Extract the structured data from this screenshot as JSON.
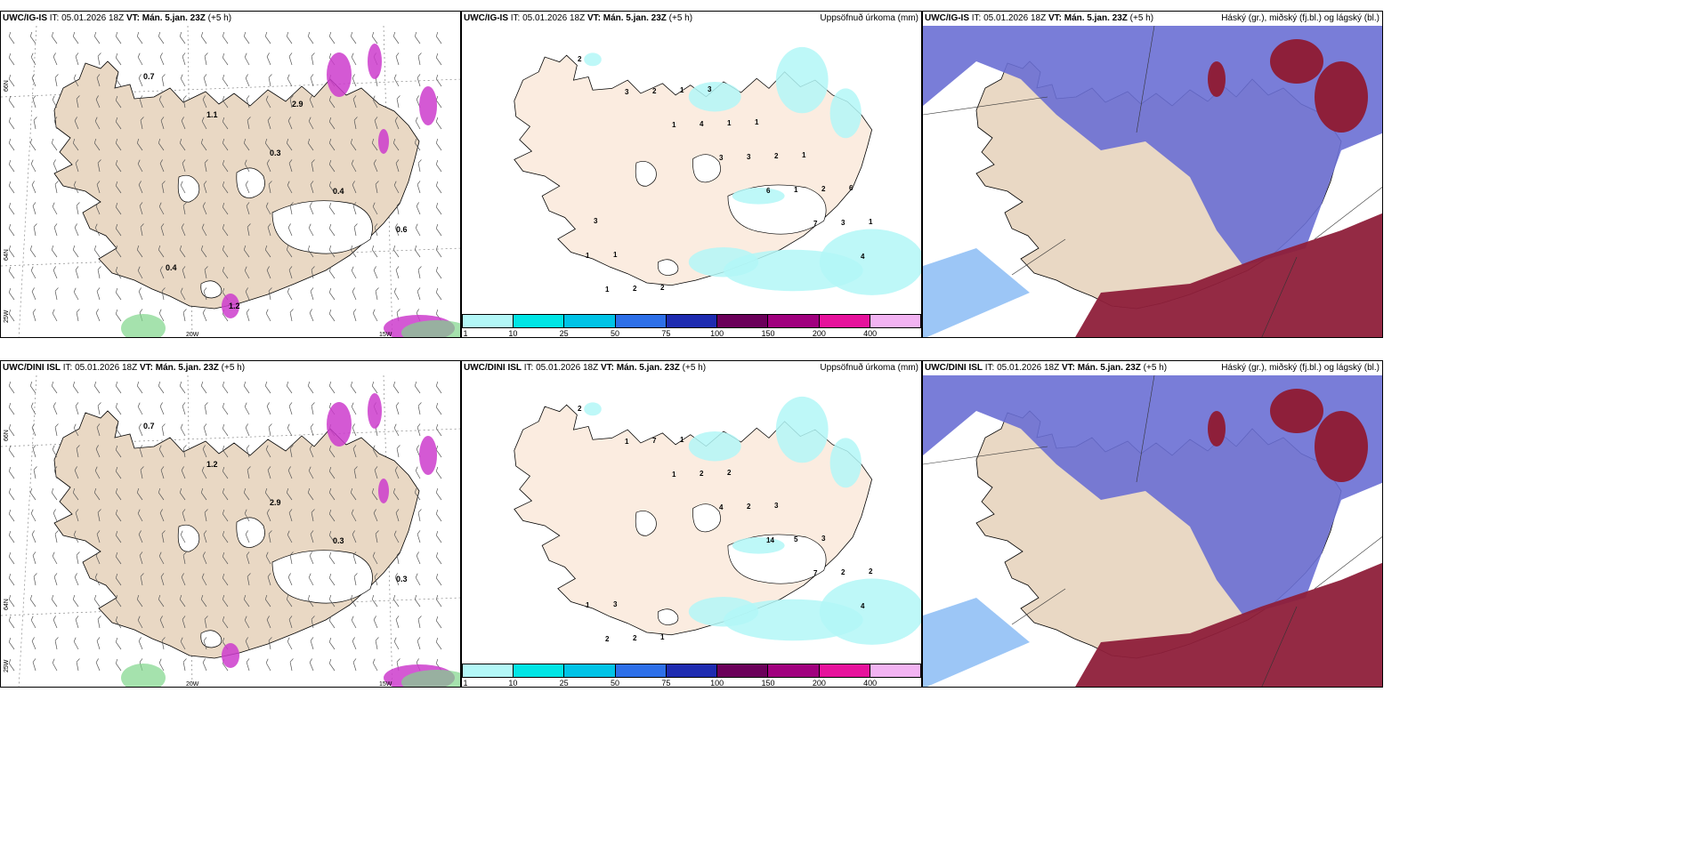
{
  "rows": [
    {
      "panels": [
        {
          "model": "UWC/IG-IS",
          "it_label": "IT:",
          "it": "05.01.2026 18Z",
          "vt_label": "VT:",
          "vt": "Mán. 5.jan. 23Z",
          "lead": "(+5 h)",
          "title": ""
        },
        {
          "model": "UWC/IG-IS",
          "it_label": "IT:",
          "it": "05.01.2026 18Z",
          "vt_label": "VT:",
          "vt": "Mán. 5.jan. 23Z",
          "lead": "(+5 h)",
          "title": "Uppsöfnuð úrkoma (mm)"
        },
        {
          "model": "UWC/IG-IS",
          "it_label": "IT:",
          "it": "05.01.2026 18Z",
          "vt_label": "VT:",
          "vt": "Mán. 5.jan. 23Z",
          "lead": "(+5 h)",
          "title": "Háský (gr.), miðský (fj.bl.) og lágský (bl.)"
        }
      ],
      "wind_labels": [
        "0.7",
        "1.1",
        "0.3",
        "0.4",
        "0.6",
        "0.4",
        "1.2",
        "2.9"
      ],
      "precip_labels": [
        "2",
        "3",
        "1",
        "3",
        "6",
        "7",
        "4",
        "1",
        "2",
        "4",
        "3",
        "1",
        "3",
        "1",
        "2",
        "1",
        "1",
        "2",
        "2",
        "1",
        "1",
        "2",
        "3",
        "1",
        "1",
        "6",
        "3"
      ],
      "axis": {
        "lat_n": "66N",
        "lat_s": "64N",
        "lon_w": "20W",
        "lon_e": "15W",
        "lon_far": "25W"
      }
    },
    {
      "panels": [
        {
          "model": "UWC/DINI ISL",
          "it_label": "IT:",
          "it": "05.01.2026 18Z",
          "vt_label": "VT:",
          "vt": "Mán. 5.jan. 23Z",
          "lead": "(+5 h)",
          "title": ""
        },
        {
          "model": "UWC/DINI ISL",
          "it_label": "IT:",
          "it": "05.01.2026 18Z",
          "vt_label": "VT:",
          "vt": "Mán. 5.jan. 23Z",
          "lead": "(+5 h)",
          "title": "Uppsöfnuð úrkoma (mm)"
        },
        {
          "model": "UWC/DINI ISL",
          "it_label": "IT:",
          "it": "05.01.2026 18Z",
          "vt_label": "VT:",
          "vt": "Mán. 5.jan. 23Z",
          "lead": "(+5 h)",
          "title": "Háský (gr.), miðský (fj.bl.) og lágský (bl.)"
        }
      ],
      "wind_labels": [
        "0.7",
        "1.2",
        "2.9",
        "0.3",
        "0.3"
      ],
      "precip_labels": [
        "2",
        "1",
        "1",
        "4",
        "14",
        "7",
        "4",
        "2",
        "7",
        "2",
        "2",
        "5",
        "2",
        "1",
        "2",
        "1",
        "2",
        "3",
        "3",
        "2",
        "3",
        "1"
      ],
      "axis": {
        "lat_n": "66N",
        "lat_s": "64N",
        "lon_w": "20W",
        "lon_e": "15W",
        "lon_far": "25W"
      }
    }
  ],
  "colorbar": {
    "colors": [
      "#b3f7f7",
      "#00e5e5",
      "#00c3e6",
      "#2d6fe8",
      "#1e2bb0",
      "#6b005a",
      "#a0007e",
      "#e6129c",
      "#f2b3f2"
    ],
    "ticks": [
      "1",
      "10",
      "25",
      "50",
      "75",
      "100",
      "150",
      "200",
      "400"
    ]
  },
  "colors": {
    "land": "#e9d8c4",
    "land_light": "#fbece0",
    "precip": "#b3f7f7",
    "cloud_high": "#6a6fd4",
    "cloud_low": "#8e1f3a",
    "cloud_edge": "#5aa0f0"
  }
}
